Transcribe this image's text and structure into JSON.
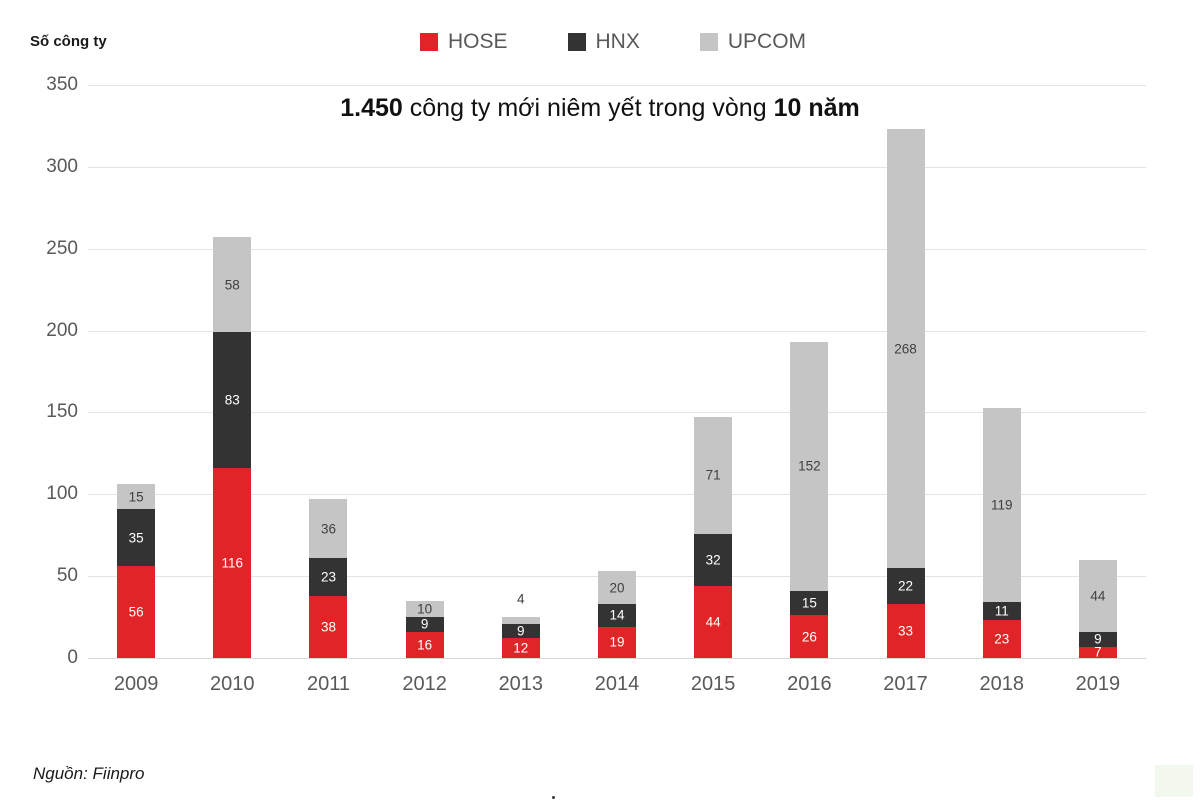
{
  "page": {
    "ylabel": "Số công ty",
    "source": "Nguồn: Fiinpro",
    "title_parts": {
      "bold1": "1.450",
      "mid": " công ty mới niêm yết trong vòng ",
      "bold2": "10 năm"
    }
  },
  "colors": {
    "hose": "#e02427",
    "hnx": "#333333",
    "upcom": "#c5c5c5",
    "gridline": "#e4e4e4",
    "axis_text": "#595959",
    "label_on_dark": "#ffffff",
    "label_on_light": "#404040"
  },
  "chart_data": {
    "type": "bar",
    "stacked": true,
    "title": "1.450 công ty mới niêm yết trong vòng 10 năm",
    "ylabel": "Số công ty",
    "xlabel": "",
    "categories": [
      "2009",
      "2010",
      "2011",
      "2012",
      "2013",
      "2014",
      "2015",
      "2016",
      "2017",
      "2018",
      "2019"
    ],
    "series": [
      {
        "name": "HOSE",
        "color": "#e02427",
        "label_color": "#ffffff",
        "values": [
          56,
          116,
          38,
          16,
          12,
          19,
          44,
          26,
          33,
          23,
          7
        ]
      },
      {
        "name": "HNX",
        "color": "#333333",
        "label_color": "#ffffff",
        "values": [
          35,
          83,
          23,
          9,
          9,
          14,
          32,
          15,
          22,
          11,
          9
        ]
      },
      {
        "name": "UPCOM",
        "color": "#c5c5c5",
        "label_color": "#404040",
        "values": [
          15,
          58,
          36,
          10,
          4,
          20,
          71,
          152,
          268,
          119,
          44
        ]
      }
    ],
    "totals": [
      106,
      257,
      97,
      35,
      25,
      53,
      147,
      193,
      323,
      153,
      60
    ],
    "ylim": [
      0,
      350
    ],
    "yticks": [
      0,
      50,
      100,
      150,
      200,
      250,
      300,
      350
    ],
    "grid": true,
    "legend_position": "top",
    "legend_entries": [
      "HOSE",
      "HNX",
      "UPCOM"
    ]
  }
}
